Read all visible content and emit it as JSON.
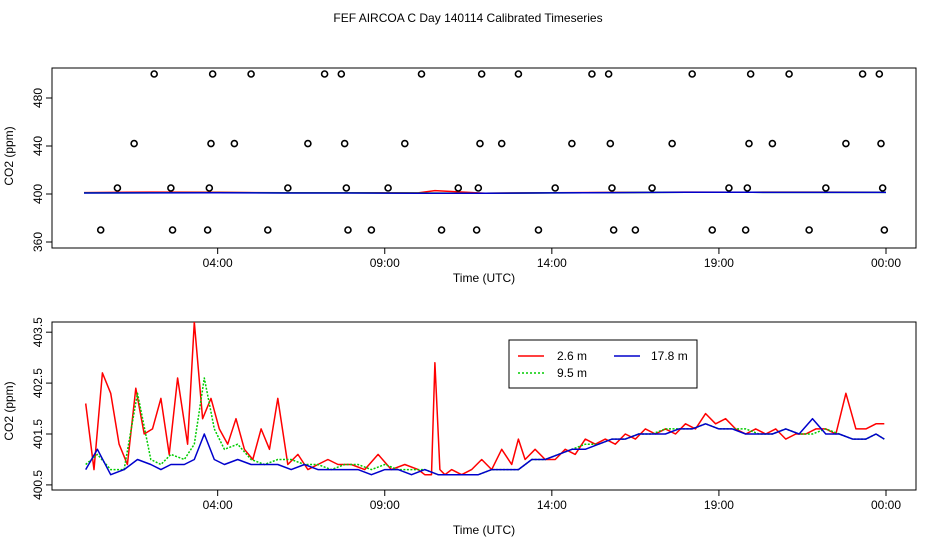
{
  "title": "FEF AIRCOA C  Day 140114  Calibrated Timeseries",
  "chart_data": [
    {
      "type": "scatter",
      "ylabel": "CO2 (ppm)",
      "xlabel": "Time (UTC)",
      "xlim": [
        0,
        24
      ],
      "ylim": [
        355,
        505
      ],
      "x_ticks": [
        4,
        9,
        14,
        19,
        24
      ],
      "x_tick_labels": [
        "04:00",
        "09:00",
        "14:00",
        "19:00",
        "00:00"
      ],
      "y_ticks": [
        360,
        400,
        440,
        480
      ],
      "y_tick_labels": [
        "360",
        "400",
        "440",
        "480"
      ],
      "calibration_points": {
        "marker": "open-circle",
        "points": [
          [
            0.5,
            370
          ],
          [
            1.0,
            405
          ],
          [
            1.5,
            442
          ],
          [
            2.1,
            500
          ],
          [
            2.6,
            405
          ],
          [
            2.65,
            370
          ],
          [
            3.7,
            370
          ],
          [
            3.75,
            405
          ],
          [
            3.8,
            442
          ],
          [
            3.85,
            500
          ],
          [
            4.5,
            442
          ],
          [
            5.0,
            500
          ],
          [
            5.5,
            370
          ],
          [
            6.1,
            405
          ],
          [
            6.7,
            442
          ],
          [
            7.2,
            500
          ],
          [
            7.7,
            500
          ],
          [
            7.8,
            442
          ],
          [
            7.85,
            405
          ],
          [
            7.9,
            370
          ],
          [
            8.6,
            370
          ],
          [
            9.1,
            405
          ],
          [
            9.6,
            442
          ],
          [
            10.1,
            500
          ],
          [
            10.7,
            370
          ],
          [
            11.2,
            405
          ],
          [
            11.75,
            370
          ],
          [
            11.8,
            405
          ],
          [
            11.85,
            442
          ],
          [
            11.9,
            500
          ],
          [
            12.5,
            442
          ],
          [
            13.0,
            500
          ],
          [
            13.6,
            370
          ],
          [
            14.1,
            405
          ],
          [
            14.6,
            442
          ],
          [
            15.2,
            500
          ],
          [
            15.7,
            500
          ],
          [
            15.75,
            442
          ],
          [
            15.8,
            405
          ],
          [
            15.85,
            370
          ],
          [
            16.5,
            370
          ],
          [
            17.0,
            405
          ],
          [
            17.6,
            442
          ],
          [
            18.2,
            500
          ],
          [
            18.8,
            370
          ],
          [
            19.3,
            405
          ],
          [
            19.8,
            370
          ],
          [
            19.85,
            405
          ],
          [
            19.9,
            442
          ],
          [
            19.95,
            500
          ],
          [
            20.6,
            442
          ],
          [
            21.1,
            500
          ],
          [
            21.7,
            370
          ],
          [
            22.2,
            405
          ],
          [
            22.8,
            442
          ],
          [
            23.3,
            500
          ],
          [
            23.8,
            500
          ],
          [
            23.85,
            442
          ],
          [
            23.9,
            405
          ],
          [
            23.95,
            370
          ]
        ]
      },
      "series": [
        {
          "name": "2.6 m",
          "color": "#ff0000",
          "x": [
            0,
            2,
            4,
            6,
            8,
            10,
            10.5,
            12,
            14,
            16,
            18,
            20,
            22,
            24
          ],
          "y": [
            401.2,
            401.6,
            401.4,
            401.0,
            401.1,
            400.9,
            402.8,
            400.7,
            401.0,
            401.3,
            401.6,
            401.5,
            401.6,
            401.5
          ]
        },
        {
          "name": "9.5 m",
          "color": "#00cc00",
          "x": [
            0,
            2,
            4,
            6,
            8,
            10,
            12,
            14,
            16,
            18,
            20,
            22,
            24
          ],
          "y": [
            400.9,
            401.0,
            401.2,
            400.9,
            400.9,
            400.8,
            400.7,
            400.9,
            401.2,
            401.4,
            401.4,
            401.3,
            401.3
          ]
        },
        {
          "name": "17.8 m",
          "color": "#0000cc",
          "x": [
            0,
            2,
            4,
            6,
            8,
            10,
            12,
            14,
            16,
            18,
            20,
            22,
            24
          ],
          "y": [
            400.8,
            400.9,
            401.0,
            400.8,
            400.8,
            400.7,
            400.7,
            400.9,
            401.2,
            401.4,
            401.4,
            401.3,
            401.3
          ]
        }
      ]
    },
    {
      "type": "line",
      "ylabel": "CO2 (ppm)",
      "xlabel": "Time (UTC)",
      "xlim": [
        0,
        24
      ],
      "ylim": [
        400.4,
        403.7
      ],
      "x_ticks": [
        4,
        9,
        14,
        19,
        24
      ],
      "x_tick_labels": [
        "04:00",
        "09:00",
        "14:00",
        "19:00",
        "00:00"
      ],
      "y_ticks": [
        400.5,
        401.5,
        402.5,
        403.5
      ],
      "y_tick_labels": [
        "400.5",
        "401.5",
        "402.5",
        "403.5"
      ],
      "legend": {
        "position": "top-center",
        "entries": [
          "2.6 m",
          "9.5 m",
          "17.8 m"
        ]
      },
      "series": [
        {
          "name": "2.6 m",
          "color": "#ff0000",
          "dash": "solid",
          "x": [
            0.05,
            0.3,
            0.55,
            0.8,
            1.05,
            1.3,
            1.55,
            1.8,
            2.05,
            2.3,
            2.55,
            2.8,
            3.1,
            3.3,
            3.55,
            3.8,
            4.05,
            4.3,
            4.55,
            4.8,
            5.05,
            5.3,
            5.55,
            5.8,
            6.1,
            6.4,
            6.7,
            7.0,
            7.3,
            7.6,
            8.0,
            8.4,
            8.8,
            9.2,
            9.6,
            10.0,
            10.2,
            10.4,
            10.5,
            10.65,
            10.8,
            11.0,
            11.3,
            11.6,
            11.9,
            12.2,
            12.5,
            12.8,
            13.0,
            13.2,
            13.5,
            13.8,
            14.1,
            14.4,
            14.7,
            15.0,
            15.3,
            15.6,
            15.9,
            16.2,
            16.5,
            16.8,
            17.1,
            17.4,
            17.7,
            18.0,
            18.3,
            18.6,
            18.9,
            19.2,
            19.5,
            19.8,
            20.1,
            20.4,
            20.7,
            21.0,
            21.3,
            21.6,
            21.9,
            22.2,
            22.5,
            22.8,
            23.1,
            23.4,
            23.7,
            23.95
          ],
          "y": [
            402.1,
            400.8,
            402.7,
            402.3,
            401.3,
            400.9,
            402.4,
            401.5,
            401.6,
            402.2,
            401.1,
            402.6,
            401.3,
            403.7,
            401.8,
            402.2,
            401.6,
            401.3,
            401.8,
            401.2,
            401.0,
            401.6,
            401.2,
            402.2,
            400.9,
            401.1,
            400.8,
            400.9,
            401.0,
            400.9,
            400.9,
            400.8,
            401.1,
            400.8,
            400.9,
            400.8,
            400.7,
            400.7,
            402.9,
            400.8,
            400.7,
            400.8,
            400.7,
            400.8,
            401.0,
            400.8,
            401.2,
            400.9,
            401.4,
            401.0,
            401.2,
            401.0,
            401.0,
            401.2,
            401.1,
            401.4,
            401.3,
            401.4,
            401.3,
            401.5,
            401.4,
            401.6,
            401.5,
            401.6,
            401.5,
            401.7,
            401.6,
            401.9,
            401.7,
            401.8,
            401.6,
            401.5,
            401.6,
            401.5,
            401.6,
            401.4,
            401.5,
            401.5,
            401.6,
            401.6,
            401.5,
            402.3,
            401.6,
            401.6,
            401.7,
            401.7
          ]
        },
        {
          "name": "9.5 m",
          "color": "#00cc00",
          "dash": "dotted",
          "x": [
            0.05,
            0.4,
            0.8,
            1.2,
            1.6,
            2.0,
            2.3,
            2.6,
            3.0,
            3.3,
            3.6,
            3.9,
            4.2,
            4.6,
            5.0,
            5.4,
            5.8,
            6.2,
            6.6,
            7.0,
            7.4,
            7.8,
            8.2,
            8.6,
            9.0,
            9.4,
            9.8,
            10.2,
            10.6,
            11.0,
            11.4,
            11.8,
            12.2,
            12.6,
            13.0,
            13.4,
            13.8,
            14.2,
            14.6,
            15.0,
            15.4,
            15.8,
            16.2,
            16.6,
            17.0,
            17.4,
            17.8,
            18.2,
            18.6,
            19.0,
            19.4,
            19.8,
            20.2,
            20.6,
            21.0,
            21.4,
            21.8,
            22.2,
            22.6,
            23.0,
            23.4,
            23.7,
            23.95
          ],
          "y": [
            400.9,
            401.1,
            400.8,
            400.8,
            402.3,
            401.0,
            400.9,
            401.1,
            401.0,
            401.3,
            402.6,
            401.6,
            401.2,
            401.3,
            401.0,
            400.9,
            401.0,
            401.0,
            400.9,
            400.9,
            400.8,
            400.9,
            400.9,
            400.8,
            400.9,
            400.8,
            400.8,
            400.8,
            400.7,
            400.7,
            400.7,
            400.7,
            400.8,
            400.8,
            400.8,
            401.0,
            401.0,
            401.1,
            401.2,
            401.3,
            401.3,
            401.4,
            401.4,
            401.5,
            401.5,
            401.6,
            401.6,
            401.6,
            401.7,
            401.6,
            401.6,
            401.6,
            401.5,
            401.5,
            401.6,
            401.5,
            401.5,
            401.6,
            401.5,
            401.4,
            401.4,
            401.5,
            401.4
          ]
        },
        {
          "name": "17.8 m",
          "color": "#0000cc",
          "dash": "solid",
          "x": [
            0.05,
            0.4,
            0.8,
            1.2,
            1.6,
            2.0,
            2.3,
            2.6,
            3.0,
            3.3,
            3.6,
            3.9,
            4.2,
            4.6,
            5.0,
            5.4,
            5.8,
            6.2,
            6.6,
            7.0,
            7.4,
            7.8,
            8.2,
            8.6,
            9.0,
            9.4,
            9.8,
            10.2,
            10.6,
            11.0,
            11.4,
            11.8,
            12.2,
            12.6,
            13.0,
            13.4,
            13.8,
            14.2,
            14.6,
            15.0,
            15.4,
            15.8,
            16.2,
            16.6,
            17.0,
            17.4,
            17.8,
            18.2,
            18.6,
            19.0,
            19.4,
            19.8,
            20.2,
            20.6,
            21.0,
            21.4,
            21.8,
            22.2,
            22.6,
            23.0,
            23.4,
            23.7,
            23.95
          ],
          "y": [
            400.8,
            401.2,
            400.7,
            400.8,
            401.0,
            400.9,
            400.8,
            400.9,
            400.9,
            401.0,
            401.5,
            401.0,
            400.9,
            401.0,
            400.9,
            400.9,
            400.9,
            400.8,
            400.9,
            400.8,
            400.8,
            400.8,
            400.8,
            400.7,
            400.8,
            400.8,
            400.7,
            400.8,
            400.7,
            400.7,
            400.7,
            400.7,
            400.8,
            400.8,
            400.8,
            401.0,
            401.0,
            401.1,
            401.2,
            401.2,
            401.3,
            401.4,
            401.4,
            401.5,
            401.5,
            401.5,
            401.6,
            401.6,
            401.7,
            401.6,
            401.6,
            401.5,
            401.5,
            401.5,
            401.6,
            401.5,
            401.8,
            401.5,
            401.5,
            401.4,
            401.4,
            401.5,
            401.4
          ]
        }
      ]
    }
  ]
}
